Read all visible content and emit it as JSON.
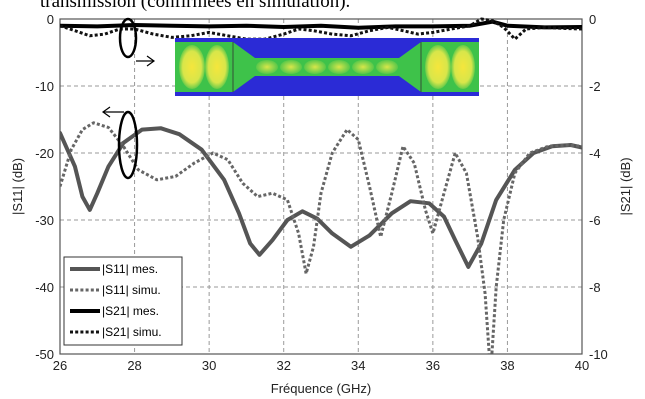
{
  "caption_partial": "transmission (confirmées en simulation).",
  "chart_data": {
    "type": "line",
    "xlabel": "Fréquence (GHz)",
    "ylabel_left": "|S11| (dB)",
    "ylabel_right": "|S21| (dB)",
    "xlim": [
      26,
      40
    ],
    "ylim_left": [
      -50,
      0
    ],
    "ylim_right": [
      -10,
      0
    ],
    "x_ticks": [
      "26",
      "28",
      "30",
      "32",
      "34",
      "36",
      "38",
      "40"
    ],
    "y_ticks_left": [
      "-50",
      "-40",
      "-30",
      "-20",
      "-10",
      "0"
    ],
    "y_ticks_right": [
      "-10",
      "-8",
      "-6",
      "-4",
      "-2",
      "0"
    ],
    "grid": true,
    "legend_position": "bottom-left",
    "series": [
      {
        "name": "|S11| mes.",
        "axis": "left",
        "style": "solid",
        "width": 4,
        "color": "#555555",
        "x": [
          26.0,
          26.4,
          26.6,
          26.8,
          27.0,
          27.3,
          27.7,
          28.2,
          28.7,
          29.2,
          29.8,
          30.4,
          30.8,
          31.1,
          31.35,
          31.7,
          32.1,
          32.5,
          32.9,
          33.3,
          33.8,
          34.3,
          34.9,
          35.4,
          35.9,
          36.3,
          36.6,
          36.95,
          37.3,
          37.7,
          38.2,
          38.7,
          39.2,
          39.7,
          40.0
        ],
        "y": [
          -17,
          -22,
          -26.5,
          -28.5,
          -26,
          -22,
          -18.5,
          -16.5,
          -16.3,
          -17.2,
          -19.5,
          -24,
          -29,
          -33.5,
          -35.2,
          -33,
          -30,
          -28.7,
          -29.8,
          -32,
          -34,
          -32.3,
          -29,
          -27.2,
          -27.5,
          -29.5,
          -33,
          -37,
          -33.5,
          -27,
          -22.5,
          -20,
          -19,
          -18.8,
          -19.2
        ]
      },
      {
        "name": "|S11| simu.",
        "axis": "left",
        "style": "dotted",
        "width": 3,
        "color": "#666666",
        "x": [
          26.0,
          26.3,
          26.6,
          26.9,
          27.3,
          27.7,
          28.1,
          28.6,
          29.1,
          29.6,
          30.1,
          30.5,
          30.9,
          31.3,
          31.7,
          32.1,
          32.4,
          32.6,
          32.8,
          33.0,
          33.3,
          33.7,
          34.0,
          34.3,
          34.6,
          34.9,
          35.2,
          35.5,
          35.8,
          36.0,
          36.3,
          36.6,
          36.9,
          37.2,
          37.4,
          37.55,
          37.7,
          37.9,
          38.2,
          38.6,
          39.1,
          39.6,
          40.0
        ],
        "y": [
          -25,
          -19.5,
          -16.5,
          -15.5,
          -16.2,
          -19,
          -22.5,
          -24,
          -23.5,
          -21.5,
          -20,
          -21,
          -24.5,
          -26.5,
          -26,
          -27,
          -32,
          -38,
          -34,
          -26,
          -20,
          -16.5,
          -18,
          -25,
          -32.5,
          -26,
          -19,
          -21.5,
          -28.5,
          -32,
          -26,
          -20,
          -23,
          -32.5,
          -41,
          -53,
          -40,
          -30,
          -23,
          -20,
          -19,
          -18.8,
          -19
        ]
      },
      {
        "name": "|S21| mes.",
        "axis": "right",
        "style": "solid",
        "width": 4,
        "color": "#000000",
        "x": [
          26.0,
          27.0,
          28.0,
          29.0,
          30.0,
          31.0,
          32.0,
          33.0,
          34.0,
          35.0,
          36.0,
          37.0,
          37.6,
          38.0,
          39.0,
          40.0
        ],
        "y": [
          -0.2,
          -0.22,
          -0.18,
          -0.2,
          -0.22,
          -0.2,
          -0.24,
          -0.2,
          -0.26,
          -0.22,
          -0.22,
          -0.2,
          -0.08,
          -0.2,
          -0.25,
          -0.24
        ]
      },
      {
        "name": "|S21| simu.",
        "axis": "right",
        "style": "dotted",
        "width": 3,
        "color": "#111111",
        "x": [
          26.0,
          26.4,
          26.8,
          27.2,
          27.6,
          28.0,
          28.5,
          29.0,
          29.5,
          30.0,
          30.5,
          31.0,
          31.5,
          32.0,
          32.4,
          32.8,
          33.3,
          33.8,
          34.3,
          34.8,
          35.2,
          35.6,
          36.0,
          36.5,
          37.0,
          37.3,
          37.6,
          37.9,
          38.2,
          38.5,
          39.0,
          39.5,
          40.0
        ],
        "y": [
          -0.2,
          -0.35,
          -0.5,
          -0.45,
          -0.3,
          -0.3,
          -0.45,
          -0.55,
          -0.5,
          -0.4,
          -0.5,
          -0.6,
          -0.6,
          -0.45,
          -0.3,
          -0.35,
          -0.45,
          -0.5,
          -0.35,
          -0.25,
          -0.35,
          -0.45,
          -0.4,
          -0.3,
          -0.2,
          -0.0,
          -0.05,
          -0.25,
          -0.6,
          -0.3,
          -0.25,
          -0.28,
          -0.3
        ]
      }
    ]
  },
  "inset": {
    "description_colors": {
      "background": "#2b2bd6",
      "waveguide": "#3ec24a",
      "field_high": "#d8e64a",
      "field_peak": "#f5e63c"
    }
  }
}
